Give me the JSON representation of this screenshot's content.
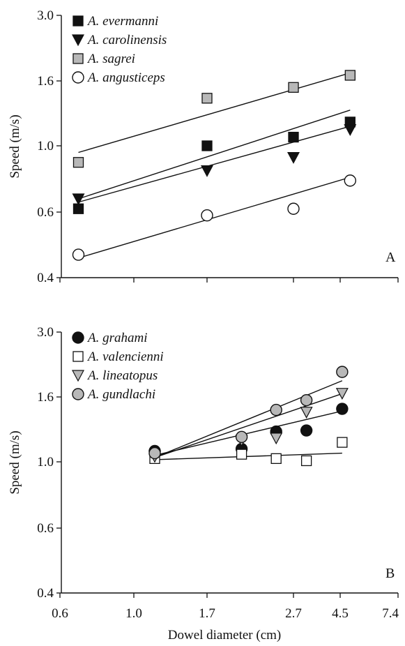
{
  "xlabel": "Dowel diameter (cm)",
  "x_ticks": [
    "0.6",
    "1.0",
    "1.7",
    "2.7",
    "4.5",
    "7.4"
  ],
  "chart_data": [
    {
      "type": "scatter",
      "panel": "A",
      "ylabel": "Speed (m/s)",
      "y_ticks": [
        "0.4",
        "0.6",
        "1.0",
        "1.6",
        "3.0"
      ],
      "legend_position": "top-left",
      "series": [
        {
          "name": "A. evermanni",
          "marker": "square-black",
          "x": [
            0.7,
            1.7,
            2.7,
            5.0
          ],
          "y": [
            0.62,
            1.0,
            1.08,
            1.22
          ],
          "fit": [
            [
              0.7,
              0.68
            ],
            [
              5.0,
              1.33
            ]
          ]
        },
        {
          "name": "A. carolinensis",
          "marker": "triangle-down-black",
          "x": [
            0.7,
            1.7,
            2.7,
            5.0
          ],
          "y": [
            0.68,
            0.85,
            0.93,
            1.15
          ],
          "fit": [
            [
              0.7,
              0.66
            ],
            [
              5.0,
              1.18
            ]
          ]
        },
        {
          "name": "A. sagrei",
          "marker": "square-gray",
          "x": [
            0.7,
            1.7,
            2.7,
            5.0
          ],
          "y": [
            0.9,
            1.44,
            1.54,
            1.72
          ],
          "fit": [
            [
              0.7,
              0.96
            ],
            [
              5.0,
              1.77
            ]
          ]
        },
        {
          "name": "A. angusticeps",
          "marker": "circle-open",
          "x": [
            0.7,
            1.7,
            2.7,
            5.0
          ],
          "y": [
            0.47,
            0.59,
            0.62,
            0.79
          ],
          "fit": [
            [
              0.7,
              0.46
            ],
            [
              5.0,
              0.81
            ]
          ]
        }
      ]
    },
    {
      "type": "scatter",
      "panel": "B",
      "ylabel": "Speed (m/s)",
      "y_ticks": [
        "0.4",
        "0.6",
        "1.0",
        "1.6",
        "3.0"
      ],
      "legend_position": "top-left",
      "series": [
        {
          "name": "A. grahami",
          "marker": "circle-black",
          "x": [
            1.2,
            2.1,
            2.5,
            3.2,
            4.6
          ],
          "y": [
            1.1,
            1.12,
            1.28,
            1.29,
            1.49
          ],
          "fit": [
            [
              1.2,
              1.06
            ],
            [
              4.6,
              1.47
            ]
          ]
        },
        {
          "name": "A. valencienni",
          "marker": "square-open",
          "x": [
            1.2,
            2.1,
            2.5,
            3.2,
            4.6
          ],
          "y": [
            1.03,
            1.07,
            1.03,
            1.01,
            1.18
          ],
          "fit": [
            [
              1.2,
              1.02
            ],
            [
              4.6,
              1.08
            ]
          ]
        },
        {
          "name": "A. lineatopus",
          "marker": "triangle-down-gray",
          "x": [
            1.2,
            2.1,
            2.5,
            3.2,
            4.6
          ],
          "y": [
            1.05,
            1.2,
            1.22,
            1.46,
            1.68
          ],
          "fit": [
            [
              1.2,
              1.04
            ],
            [
              4.6,
              1.67
            ]
          ]
        },
        {
          "name": "A. gundlachi",
          "marker": "circle-gray",
          "x": [
            1.2,
            2.1,
            2.5,
            3.2,
            4.6
          ],
          "y": [
            1.08,
            1.23,
            1.48,
            1.57,
            2.14
          ],
          "fit": [
            [
              1.2,
              1.04
            ],
            [
              4.6,
              1.95
            ]
          ]
        }
      ]
    }
  ]
}
